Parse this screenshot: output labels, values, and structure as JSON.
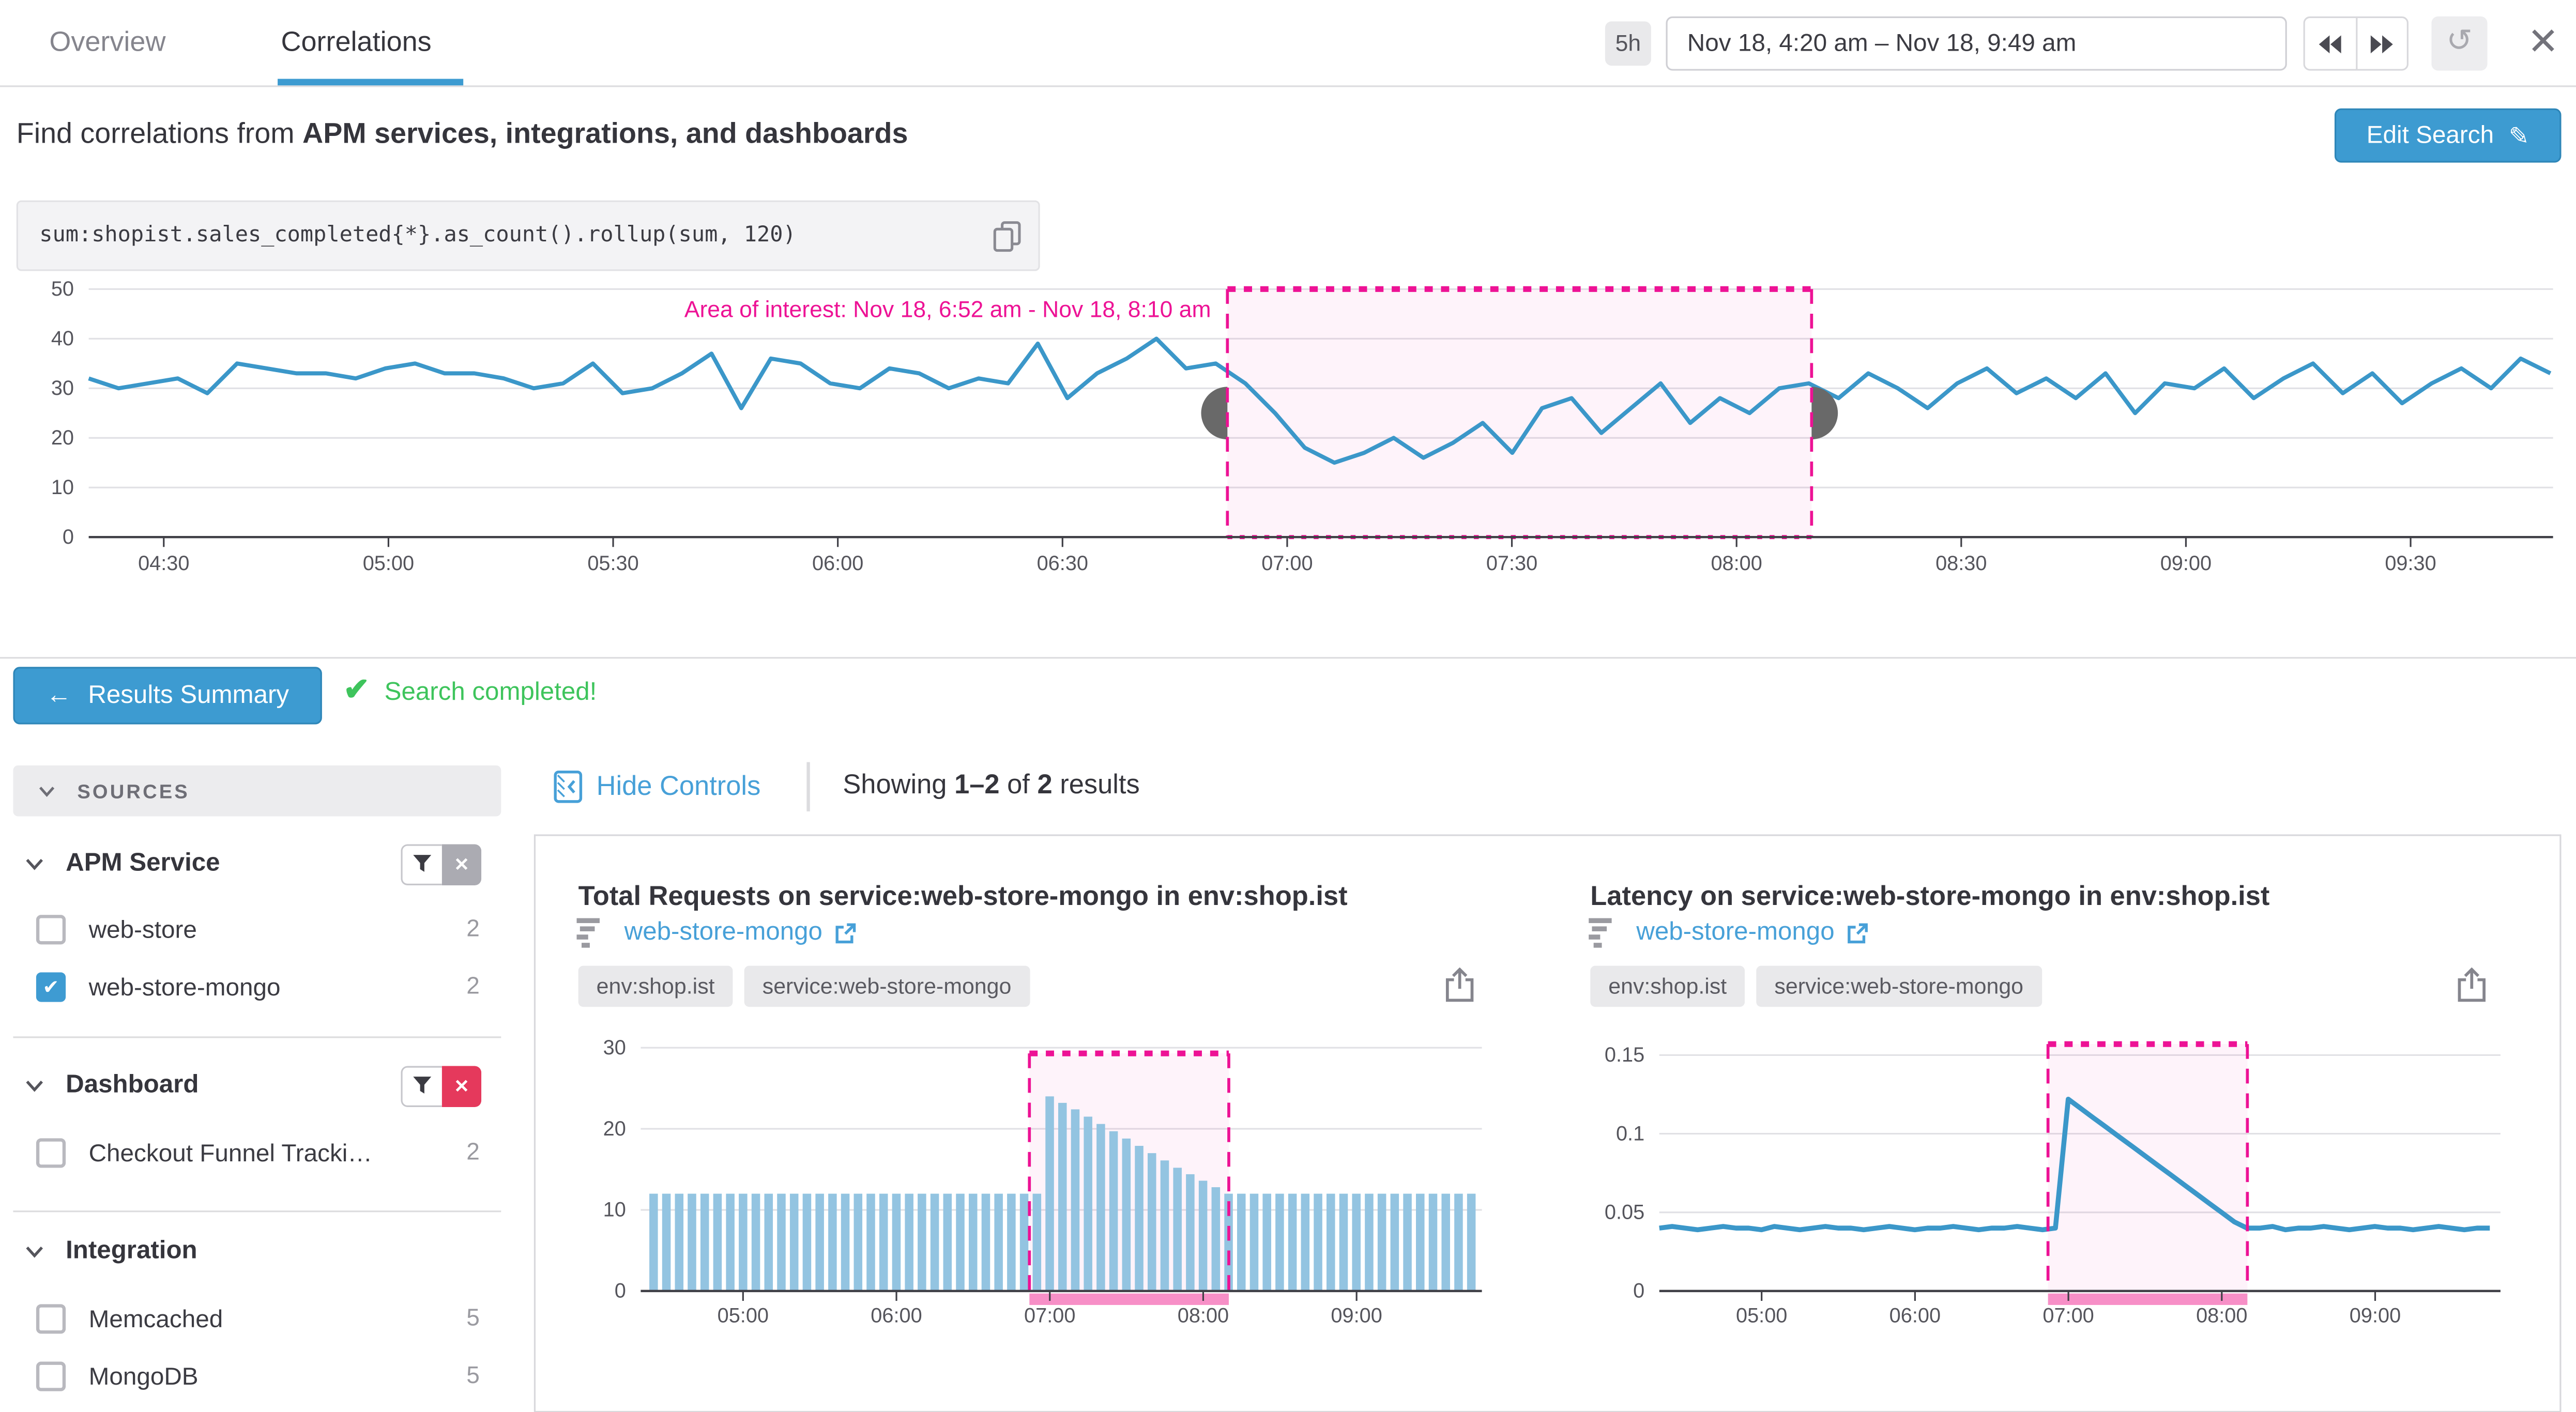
{
  "tabs": [
    {
      "label": "Overview"
    },
    {
      "label": "Correlations",
      "active": true
    }
  ],
  "timebar": {
    "duration_badge": "5h",
    "range": "Nov 18, 4:20 am – Nov 18, 9:49 am"
  },
  "search_header": {
    "prefix": "Find correlations from ",
    "emphasis": "APM services, integrations, and dashboards",
    "edit_button": "Edit Search"
  },
  "query": {
    "text": "sum:shopist.sales_completed{*}.as_count().rollup(sum, 120)"
  },
  "results_bar": {
    "summary_button": "Results Summary",
    "status": "Search completed!"
  },
  "controls": {
    "hide_button": "Hide Controls",
    "showing": {
      "prefix": "Showing ",
      "range": "1–2",
      "middle": " of ",
      "total": "2",
      "suffix": " results"
    }
  },
  "sidebar": {
    "header": "SOURCES",
    "groups": [
      {
        "label": "APM Service",
        "filter": "gray",
        "items": [
          {
            "label": "web-store",
            "count": "2",
            "checked": false
          },
          {
            "label": "web-store-mongo",
            "count": "2",
            "checked": true
          }
        ]
      },
      {
        "label": "Dashboard",
        "filter": "red",
        "items": [
          {
            "label": "Checkout Funnel Tracki…",
            "count": "2",
            "checked": false
          }
        ]
      },
      {
        "label": "Integration",
        "filter": null,
        "items": [
          {
            "label": "Memcached",
            "count": "5",
            "checked": false
          },
          {
            "label": "MongoDB",
            "count": "5",
            "checked": false
          }
        ]
      }
    ]
  },
  "cards": [
    {
      "title": "Total Requests on service:web-store-mongo in env:shop.ist",
      "link": "web-store-mongo",
      "tags": [
        "env:shop.ist",
        "service:web-store-mongo"
      ]
    },
    {
      "title": "Latency on service:web-store-mongo in env:shop.ist",
      "link": "web-store-mongo",
      "tags": [
        "env:shop.ist",
        "service:web-store-mongo"
      ]
    }
  ],
  "colors": {
    "accent_blue": "#3d9bd1",
    "link_blue": "#47a0d8",
    "line_blue": "#3b97c9",
    "bar_blue": "#93c4e1",
    "aoi_magenta": "#ed1295",
    "aoi_bar_pink": "#f78fc7",
    "success_green": "#3ec45c",
    "danger_red": "#e5395c"
  },
  "chart_data": [
    {
      "type": "line",
      "title": "sum:shopist.sales_completed{*}.as_count().rollup(sum, 120)",
      "x_domain": [
        4.333,
        9.817
      ],
      "y_domain": [
        0,
        50
      ],
      "yticks": [
        0,
        10,
        20,
        30,
        40,
        50
      ],
      "xticks": [
        {
          "h": 4.5,
          "label": "04:30"
        },
        {
          "h": 5.0,
          "label": "05:00"
        },
        {
          "h": 5.5,
          "label": "05:30"
        },
        {
          "h": 6.0,
          "label": "06:00"
        },
        {
          "h": 6.5,
          "label": "06:30"
        },
        {
          "h": 7.0,
          "label": "07:00"
        },
        {
          "h": 7.5,
          "label": "07:30"
        },
        {
          "h": 8.0,
          "label": "08:00"
        },
        {
          "h": 8.5,
          "label": "08:30"
        },
        {
          "h": 9.0,
          "label": "09:00"
        },
        {
          "h": 9.5,
          "label": "09:30"
        }
      ],
      "x_start": 4.333,
      "x_step": 0.066,
      "values": [
        32,
        30,
        31,
        32,
        29,
        35,
        34,
        33,
        33,
        32,
        34,
        35,
        33,
        33,
        32,
        30,
        31,
        35,
        29,
        30,
        33,
        37,
        26,
        36,
        35,
        31,
        30,
        34,
        33,
        30,
        32,
        31,
        39,
        28,
        33,
        36,
        40,
        34,
        35,
        31,
        25,
        18,
        15,
        17,
        20,
        16,
        19,
        23,
        17,
        26,
        28,
        21,
        26,
        31,
        23,
        28,
        25,
        30,
        31,
        28,
        33,
        30,
        26,
        31,
        34,
        29,
        32,
        28,
        33,
        25,
        31,
        30,
        34,
        28,
        32,
        35,
        29,
        33,
        27,
        31,
        34,
        30,
        36,
        33
      ],
      "stroke_width": 2.5,
      "area_of_interest": {
        "start": 6.867,
        "end": 8.167,
        "top_value": 50,
        "label": "Area of interest: Nov 18, 6:52 am - Nov 18, 8:10 am",
        "label_dy": 17,
        "handles": true,
        "bottom_bar": false
      },
      "colors": {
        "series": "#3b97c9",
        "aoi": "#ed1295",
        "aoi_fill": "rgba(237,18,149,0.05)",
        "aoi_bar": "#f78fc7"
      }
    },
    {
      "type": "bar",
      "title": "Total Requests on service:web-store-mongo in env:shop.ist",
      "x_domain": [
        4.333,
        9.817
      ],
      "y_domain": [
        0,
        32
      ],
      "yticks": [
        {
          "v": 0,
          "label": "0"
        },
        {
          "v": 10,
          "label": "10"
        },
        {
          "v": 20,
          "label": "20"
        },
        {
          "v": 30,
          "label": "30"
        }
      ],
      "xticks": [
        {
          "h": 5.0,
          "label": "05:00"
        },
        {
          "h": 6.0,
          "label": "06:00"
        },
        {
          "h": 7.0,
          "label": "07:00"
        },
        {
          "h": 8.0,
          "label": "08:00"
        },
        {
          "h": 9.0,
          "label": "09:00"
        }
      ],
      "x_start": 4.417,
      "x_step": 0.0833,
      "values": [
        12,
        12,
        12,
        12,
        12,
        12,
        12,
        12,
        12,
        12,
        12,
        12,
        12,
        12,
        12,
        12,
        12,
        12,
        12,
        12,
        12,
        12,
        12,
        12,
        12,
        12,
        12,
        12,
        12,
        12,
        12,
        24,
        23.2,
        22.4,
        21.5,
        20.6,
        19.7,
        18.8,
        17.9,
        17,
        16.1,
        15.2,
        14.4,
        13.6,
        12.8,
        12,
        12,
        12,
        12,
        12,
        12,
        12,
        12,
        12,
        12,
        12,
        12,
        12,
        12,
        12,
        12,
        12,
        12,
        12,
        12
      ],
      "area_of_interest": {
        "start": 6.867,
        "end": 8.167,
        "top_value": 29.3,
        "label": null,
        "handles": false,
        "bottom_bar": true
      },
      "colors": {
        "series": "#93c4e1",
        "aoi": "#ed1295",
        "aoi_fill": "rgba(237,18,149,0.05)",
        "aoi_bar": "#f78fc7"
      }
    },
    {
      "type": "line",
      "title": "Latency on service:web-store-mongo in env:shop.ist",
      "x_domain": [
        4.333,
        9.817
      ],
      "y_domain": [
        0,
        0.165
      ],
      "yticks": [
        {
          "v": 0,
          "label": "0"
        },
        {
          "v": 0.05,
          "label": "0.05"
        },
        {
          "v": 0.1,
          "label": "0.1"
        },
        {
          "v": 0.15,
          "label": "0.15"
        }
      ],
      "xticks": [
        {
          "h": 5.0,
          "label": "05:00"
        },
        {
          "h": 6.0,
          "label": "06:00"
        },
        {
          "h": 7.0,
          "label": "07:00"
        },
        {
          "h": 8.0,
          "label": "08:00"
        },
        {
          "h": 9.0,
          "label": "09:00"
        }
      ],
      "x_start": 4.333,
      "x_step": 0.0833,
      "values": [
        0.04,
        0.041,
        0.04,
        0.039,
        0.04,
        0.041,
        0.04,
        0.04,
        0.039,
        0.041,
        0.04,
        0.039,
        0.04,
        0.041,
        0.04,
        0.04,
        0.039,
        0.04,
        0.041,
        0.04,
        0.039,
        0.04,
        0.04,
        0.041,
        0.04,
        0.039,
        0.04,
        0.04,
        0.041,
        0.04,
        0.039,
        0.04,
        0.122,
        0.116,
        0.11,
        0.104,
        0.098,
        0.092,
        0.086,
        0.08,
        0.074,
        0.068,
        0.062,
        0.056,
        0.05,
        0.044,
        0.04,
        0.04,
        0.041,
        0.039,
        0.04,
        0.04,
        0.041,
        0.04,
        0.039,
        0.04,
        0.041,
        0.04,
        0.04,
        0.039,
        0.04,
        0.041,
        0.04,
        0.039,
        0.04,
        0.04
      ],
      "stroke_width": 3,
      "area_of_interest": {
        "start": 6.867,
        "end": 8.167,
        "top_value": 0.157,
        "label": null,
        "handles": false,
        "bottom_bar": true
      },
      "colors": {
        "series": "#3b97c9",
        "aoi": "#ed1295",
        "aoi_fill": "rgba(237,18,149,0.05)",
        "aoi_bar": "#f78fc7"
      }
    }
  ]
}
